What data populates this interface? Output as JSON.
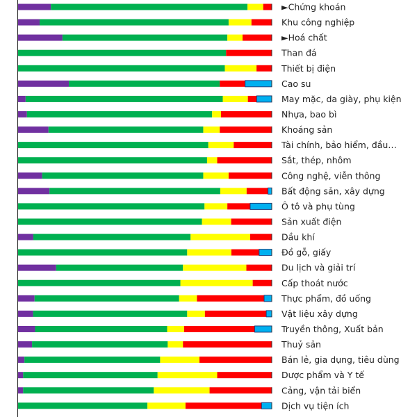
{
  "chart_data": {
    "type": "bar",
    "orientation": "horizontal",
    "stacked": "percent",
    "xlim": [
      0,
      100
    ],
    "grid": false,
    "legend": "none",
    "title": "",
    "xlabel": "",
    "ylabel": "",
    "categories": [
      "►Chứng khoán",
      "Khu công nghiệp",
      "►Hoá chất",
      "Than đá",
      "Thiết bị điện",
      "Cao su",
      "May mặc, da giày, phụ kiện",
      "Nhựa, bao bì",
      "Khoáng sản",
      "Tài chính, bảo hiểm, đầu…",
      "Sắt, thép, nhôm",
      "Công nghệ, viễn thông",
      "Bất động sản, xây dựng",
      "Ô tô và phụ tùng",
      "Sản xuất điện",
      "Dầu khí",
      "Đồ gỗ, giấy",
      "Du lịch và giải trí",
      "Cấp thoát nước",
      "Thực phẩm, đồ uống",
      "Vật liệu xây dựng",
      "Truyền thông, Xuất bản",
      "Thuỷ sản",
      "Bán lẻ, gia dụng, tiêu dùng",
      "Dược phẩm và Y tế",
      "Cảng, vận tải biển",
      "Dịch vụ tiện ích"
    ],
    "series": [
      {
        "color": "#7030a0",
        "values": [
          11.5,
          8.5,
          17.5,
          0,
          0,
          20,
          3,
          3.5,
          12,
          0,
          0,
          9.5,
          12.5,
          0,
          0,
          6,
          0,
          15,
          0,
          6.5,
          5.5,
          6.5,
          5.5,
          2.5,
          2,
          2,
          0
        ]
      },
      {
        "color": "#00b050",
        "values": [
          69,
          74.5,
          65,
          82,
          81.5,
          59.5,
          78.5,
          73,
          61,
          75,
          74.5,
          63.5,
          68,
          73.5,
          72.5,
          62,
          67,
          50,
          64,
          57,
          56.5,
          50.5,
          53.5,
          53.5,
          53,
          51.5,
          51
        ]
      },
      {
        "color": "#ffff00",
        "values": [
          5.5,
          9,
          6,
          0,
          12.5,
          0,
          10,
          3.5,
          6.5,
          10,
          4,
          10,
          10.5,
          9,
          11.5,
          23.5,
          17.5,
          25,
          28.5,
          7,
          6.5,
          6.5,
          6,
          15.5,
          23.5,
          22,
          15
        ]
      },
      {
        "color": "#ff0000",
        "values": [
          3,
          8,
          11.5,
          18,
          6,
          10,
          3.5,
          20,
          20.5,
          15,
          21.5,
          17,
          8.5,
          9,
          16,
          8.5,
          11,
          10,
          7.5,
          26.5,
          22.5,
          27,
          35,
          28.5,
          21.5,
          24.5,
          30
        ]
      },
      {
        "color": "#00b0f0",
        "values": [
          0,
          0,
          0,
          0,
          0,
          10.5,
          6,
          0,
          0,
          0,
          0,
          0,
          1.5,
          8.5,
          0,
          0,
          5,
          0,
          0,
          3,
          2,
          6.5,
          0,
          0,
          0,
          0,
          4
        ]
      }
    ]
  }
}
